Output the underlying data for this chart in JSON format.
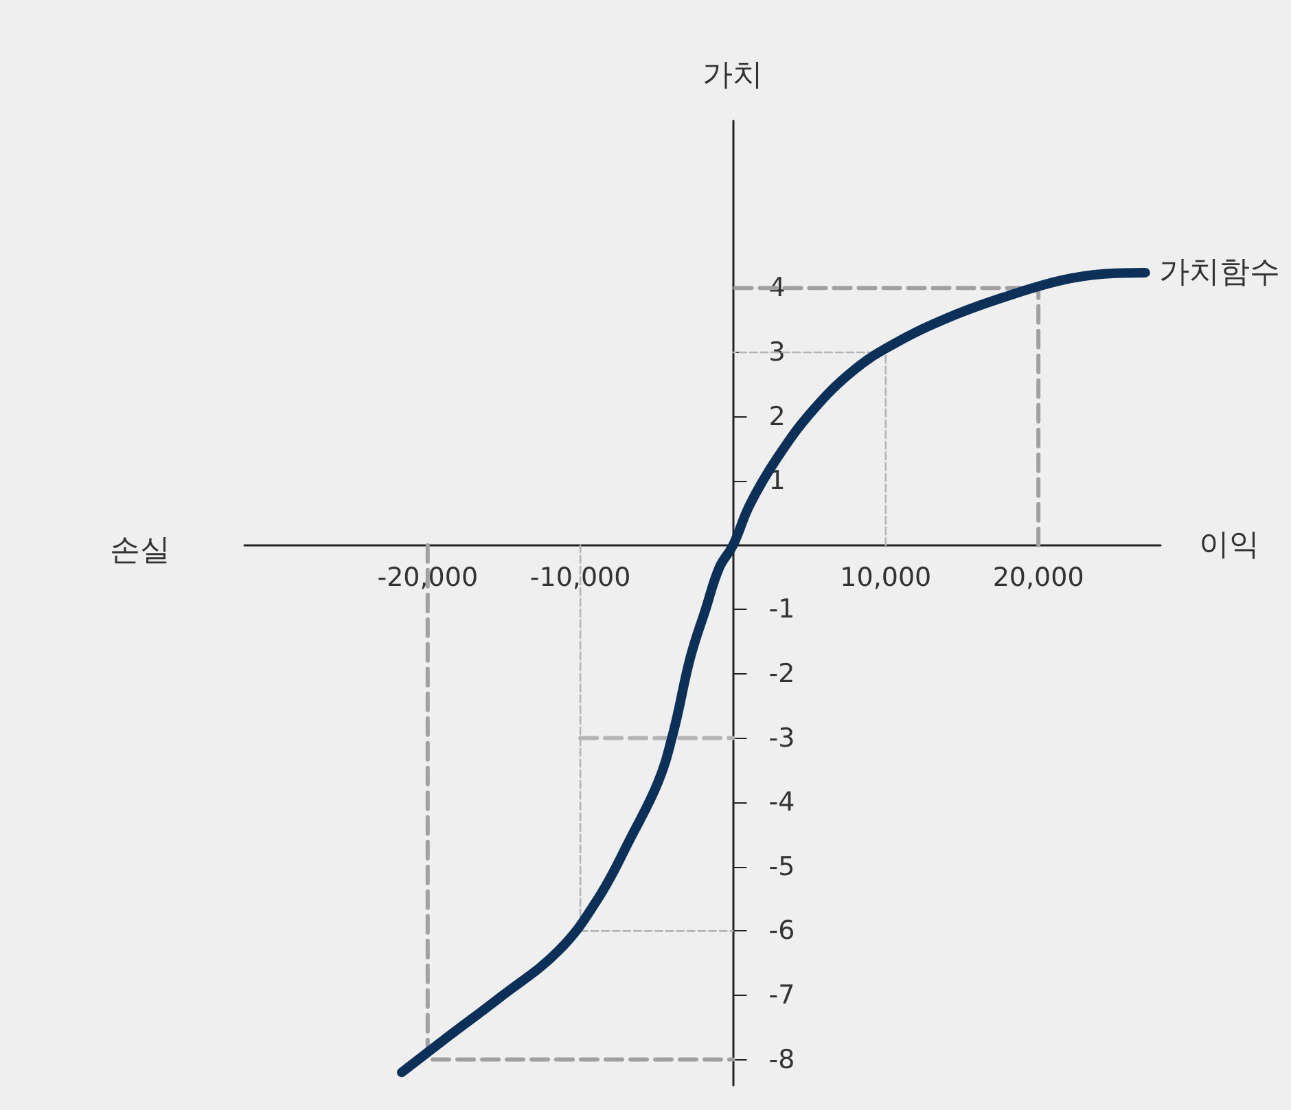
{
  "chart_data": {
    "type": "line",
    "xlabel": "이익",
    "ylabel": "가치",
    "annotations": [
      "손실"
    ],
    "xlim": [
      -32000,
      28000
    ],
    "ylim": [
      -8.4,
      6.6
    ],
    "xticks": [
      {
        "value": -20000,
        "label": "-20,000"
      },
      {
        "value": -10000,
        "label": "-10,000"
      },
      {
        "value": 10000,
        "label": "10,000"
      },
      {
        "value": 20000,
        "label": "20,000"
      }
    ],
    "yticks": [
      -8,
      -7,
      -6,
      -5,
      -4,
      -3,
      -2,
      -1,
      1,
      2,
      3,
      4
    ],
    "grid": false,
    "legend": false,
    "marker": "none",
    "series": [
      {
        "name": "가치함수",
        "color": "#0d3059",
        "line_style": "solid",
        "x": [
          -21700,
          -18700,
          -15300,
          -11400,
          -8800,
          -6700,
          -4900,
          -3900,
          -2800,
          -1800,
          -900,
          0,
          1100,
          2900,
          5200,
          7900,
          10600,
          14300,
          17900,
          21500,
          24300,
          27000
        ],
        "values": [
          -8.2,
          -7.65,
          -7.04,
          -6.3,
          -5.48,
          -4.55,
          -3.68,
          -2.9,
          -1.75,
          -1.0,
          -0.35,
          0,
          0.63,
          1.36,
          2.09,
          2.72,
          3.14,
          3.56,
          3.87,
          4.12,
          4.22,
          4.24
        ]
      },
      {
        "color": "#a0a0a0",
        "line_style": "dashed",
        "x": [
          20000,
          20000,
          0
        ],
        "values": [
          0,
          4,
          4
        ]
      },
      {
        "color": "#b4b4b4",
        "line_style": "dashed",
        "x": [
          10000,
          10000,
          0
        ],
        "values": [
          0,
          3,
          3
        ]
      },
      {
        "color": "#a0a0a0",
        "line_style": "dashed",
        "x": [
          -20000,
          -20000,
          0
        ],
        "values": [
          0,
          -8,
          -8
        ]
      },
      {
        "color": "#b4b4b4",
        "line_style": "dashed",
        "x": [
          -10000,
          -10000,
          0
        ],
        "values": [
          0,
          -6,
          -6
        ]
      },
      {
        "color": "#b4b4b4",
        "line_style": "dashed",
        "x": [
          -10000,
          0
        ],
        "values": [
          -3,
          -3
        ]
      }
    ]
  }
}
